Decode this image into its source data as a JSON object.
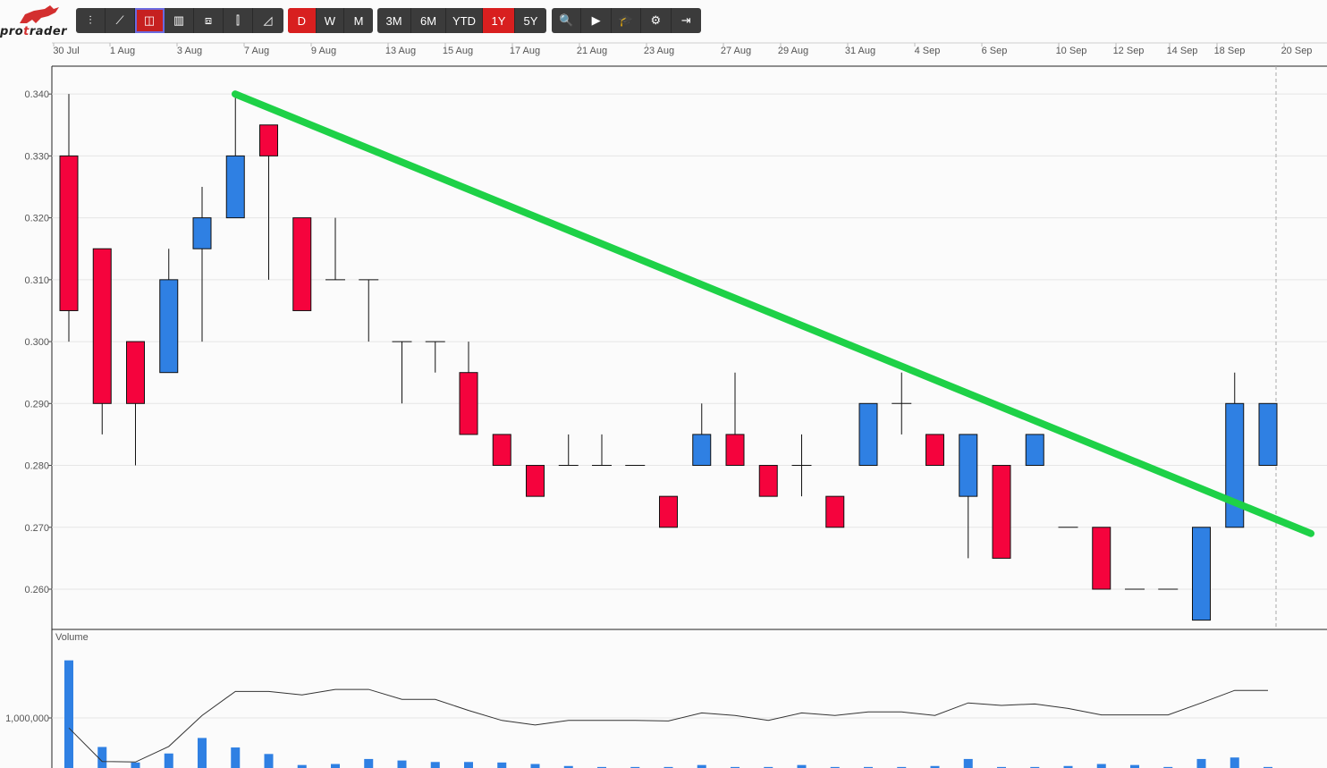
{
  "app": {
    "logo_pre": "pro",
    "logo_mid": "t",
    "logo_post": "rader"
  },
  "toolbar": {
    "chart_types": [
      {
        "name": "ohlc-icon",
        "glyph": "⫶"
      },
      {
        "name": "line-icon",
        "glyph": "⟋"
      },
      {
        "name": "candlestick-icon",
        "glyph": "◫",
        "selected": true
      },
      {
        "name": "bar-icon",
        "glyph": "▥"
      },
      {
        "name": "hollow-candle-icon",
        "glyph": "⧈"
      },
      {
        "name": "hlc-icon",
        "glyph": "⫿"
      },
      {
        "name": "area-icon",
        "glyph": "◿"
      }
    ],
    "periods": [
      "D",
      "W",
      "M"
    ],
    "active_period": "D",
    "ranges": [
      "3M",
      "6M",
      "YTD",
      "1Y",
      "5Y"
    ],
    "active_range": "1Y",
    "tools": [
      {
        "name": "zoom-icon",
        "glyph": "🔍"
      },
      {
        "name": "play-icon",
        "glyph": "▶"
      },
      {
        "name": "education-icon",
        "glyph": "🎓"
      },
      {
        "name": "settings-icon",
        "glyph": "⚙"
      },
      {
        "name": "exit-icon",
        "glyph": "⇥"
      }
    ]
  },
  "chart_data": {
    "type": "candlestick",
    "x_labels": [
      "30 Jul",
      "1 Aug",
      "3 Aug",
      "7 Aug",
      "9 Aug",
      "13 Aug",
      "15 Aug",
      "17 Aug",
      "21 Aug",
      "23 Aug",
      "27 Aug",
      "29 Aug",
      "31 Aug",
      "4 Sep",
      "6 Sep",
      "10 Sep",
      "12 Sep",
      "14 Sep",
      "18 Sep",
      "20 Sep"
    ],
    "y_ticks": [
      0.34,
      0.33,
      0.32,
      0.31,
      0.3,
      0.29,
      0.28,
      0.27,
      0.26
    ],
    "ylim": [
      0.2535,
      0.3445
    ],
    "candles": [
      {
        "date": "30 Jul",
        "open": 0.33,
        "high": 0.34,
        "low": 0.3,
        "close": 0.305
      },
      {
        "date": "31 Jul",
        "open": 0.315,
        "high": 0.315,
        "low": 0.285,
        "close": 0.29
      },
      {
        "date": "1 Aug",
        "open": 0.3,
        "high": 0.3,
        "low": 0.28,
        "close": 0.29
      },
      {
        "date": "2 Aug",
        "open": 0.295,
        "high": 0.315,
        "low": 0.295,
        "close": 0.31
      },
      {
        "date": "3 Aug",
        "open": 0.315,
        "high": 0.325,
        "low": 0.3,
        "close": 0.32
      },
      {
        "date": "6 Aug",
        "open": 0.32,
        "high": 0.34,
        "low": 0.32,
        "close": 0.33
      },
      {
        "date": "7 Aug",
        "open": 0.335,
        "high": 0.335,
        "low": 0.31,
        "close": 0.33
      },
      {
        "date": "8 Aug",
        "open": 0.32,
        "high": 0.32,
        "low": 0.305,
        "close": 0.305
      },
      {
        "date": "9 Aug",
        "open": 0.31,
        "high": 0.32,
        "low": 0.31,
        "close": 0.31
      },
      {
        "date": "10 Aug",
        "open": 0.31,
        "high": 0.31,
        "low": 0.3,
        "close": 0.31
      },
      {
        "date": "13 Aug",
        "open": 0.3,
        "high": 0.3,
        "low": 0.29,
        "close": 0.3
      },
      {
        "date": "14 Aug",
        "open": 0.3,
        "high": 0.3,
        "low": 0.295,
        "close": 0.3
      },
      {
        "date": "15 Aug",
        "open": 0.295,
        "high": 0.3,
        "low": 0.285,
        "close": 0.285
      },
      {
        "date": "16 Aug",
        "open": 0.285,
        "high": 0.285,
        "low": 0.28,
        "close": 0.28
      },
      {
        "date": "17 Aug",
        "open": 0.28,
        "high": 0.28,
        "low": 0.275,
        "close": 0.275
      },
      {
        "date": "20 Aug",
        "open": 0.28,
        "high": 0.285,
        "low": 0.28,
        "close": 0.28
      },
      {
        "date": "21 Aug",
        "open": 0.28,
        "high": 0.285,
        "low": 0.28,
        "close": 0.28
      },
      {
        "date": "22 Aug",
        "open": 0.28,
        "high": 0.28,
        "low": 0.28,
        "close": 0.28
      },
      {
        "date": "23 Aug",
        "open": 0.275,
        "high": 0.275,
        "low": 0.27,
        "close": 0.27
      },
      {
        "date": "24 Aug",
        "open": 0.28,
        "high": 0.29,
        "low": 0.28,
        "close": 0.285
      },
      {
        "date": "27 Aug",
        "open": 0.285,
        "high": 0.295,
        "low": 0.28,
        "close": 0.28
      },
      {
        "date": "28 Aug",
        "open": 0.28,
        "high": 0.28,
        "low": 0.275,
        "close": 0.275
      },
      {
        "date": "29 Aug",
        "open": 0.28,
        "high": 0.285,
        "low": 0.275,
        "close": 0.28
      },
      {
        "date": "30 Aug",
        "open": 0.275,
        "high": 0.275,
        "low": 0.27,
        "close": 0.27
      },
      {
        "date": "31 Aug",
        "open": 0.28,
        "high": 0.29,
        "low": 0.28,
        "close": 0.29
      },
      {
        "date": "3 Sep",
        "open": 0.29,
        "high": 0.295,
        "low": 0.285,
        "close": 0.29
      },
      {
        "date": "4 Sep",
        "open": 0.285,
        "high": 0.285,
        "low": 0.28,
        "close": 0.28
      },
      {
        "date": "5 Sep",
        "open": 0.275,
        "high": 0.285,
        "low": 0.265,
        "close": 0.285
      },
      {
        "date": "6 Sep",
        "open": 0.28,
        "high": 0.28,
        "low": 0.265,
        "close": 0.265
      },
      {
        "date": "7 Sep",
        "open": 0.28,
        "high": 0.285,
        "low": 0.28,
        "close": 0.285
      },
      {
        "date": "10 Sep",
        "open": 0.27,
        "high": 0.27,
        "low": 0.27,
        "close": 0.27
      },
      {
        "date": "11 Sep",
        "open": 0.27,
        "high": 0.27,
        "low": 0.26,
        "close": 0.26
      },
      {
        "date": "12 Sep",
        "open": 0.26,
        "high": 0.26,
        "low": 0.26,
        "close": 0.26
      },
      {
        "date": "13 Sep",
        "open": 0.26,
        "high": 0.26,
        "low": 0.26,
        "close": 0.26
      },
      {
        "date": "14 Sep",
        "open": 0.255,
        "high": 0.27,
        "low": 0.255,
        "close": 0.27
      },
      {
        "date": "17 Sep",
        "open": 0.27,
        "high": 0.295,
        "low": 0.27,
        "close": 0.29
      },
      {
        "date": "18 Sep",
        "open": 0.28,
        "high": 0.29,
        "low": 0.28,
        "close": 0.29
      }
    ],
    "trendline": {
      "from": {
        "date": "6 Aug",
        "value": 0.34
      },
      "to": {
        "date": "beyond 18 Sep",
        "value": 0.269
      }
    },
    "volume": {
      "label": "Volume",
      "tick_label": "1,000,000",
      "tick_value": 1000000,
      "values": [
        2150000,
        420000,
        110000,
        290000,
        600000,
        410000,
        280000,
        60000,
        80000,
        180000,
        150000,
        120000,
        120000,
        110000,
        80000,
        40000,
        20000,
        20000,
        20000,
        60000,
        20000,
        20000,
        60000,
        20000,
        20000,
        20000,
        40000,
        180000,
        20000,
        20000,
        40000,
        80000,
        60000,
        20000,
        180000,
        210000,
        20000
      ],
      "average": [
        800000,
        130000,
        120000,
        430000,
        1050000,
        1530000,
        1530000,
        1460000,
        1570000,
        1570000,
        1370000,
        1370000,
        1150000,
        950000,
        860000,
        950000,
        950000,
        950000,
        940000,
        1100000,
        1050000,
        950000,
        1100000,
        1050000,
        1120000,
        1120000,
        1050000,
        1300000,
        1250000,
        1280000,
        1190000,
        1060000,
        1060000,
        1060000,
        1300000,
        1550000,
        1550000
      ],
      "color": "#2f80e3",
      "avg_color": "#333333"
    },
    "colors": {
      "up": "#2f80e3",
      "down": "#f5033d",
      "trendline": "#1ed147",
      "grid": "#e6e6e6"
    }
  }
}
